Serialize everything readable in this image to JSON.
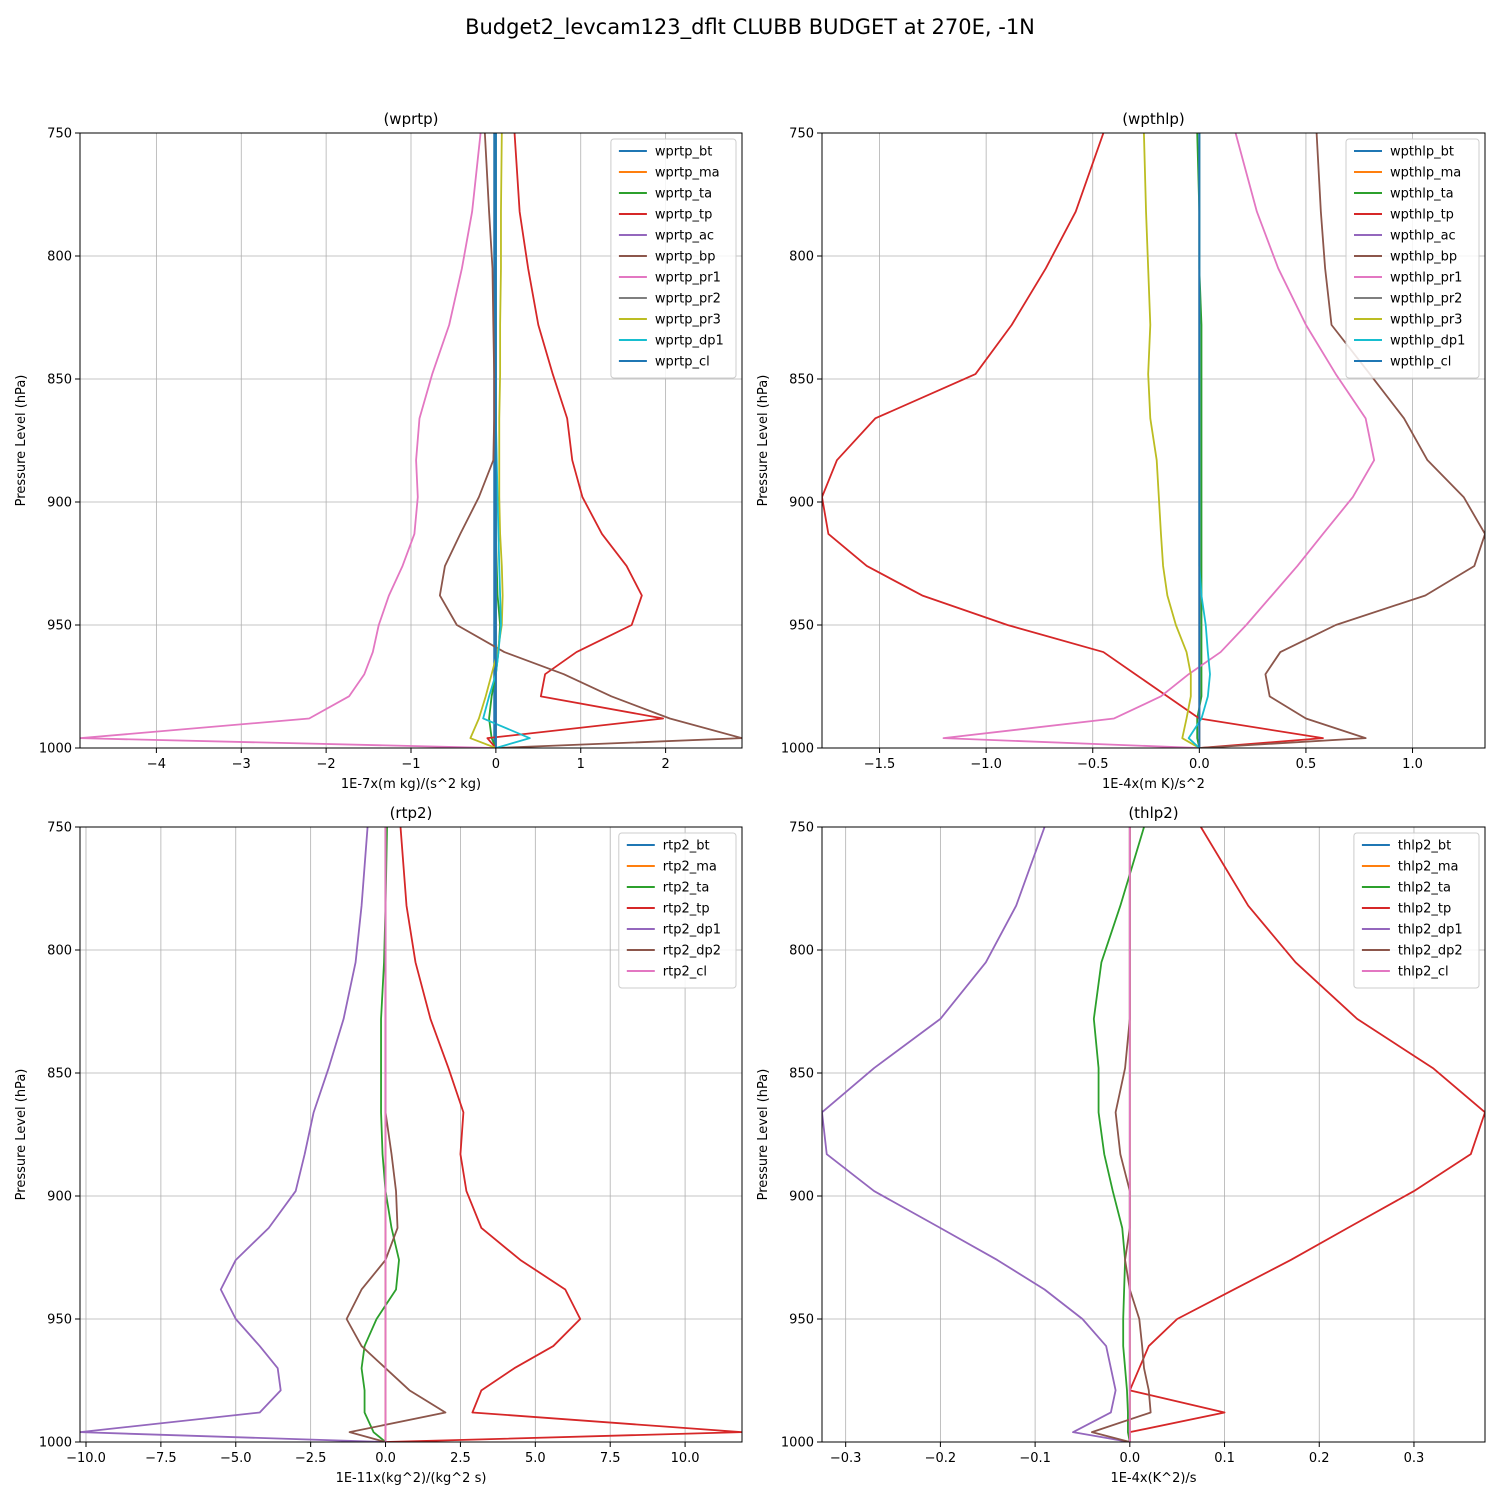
{
  "figure_title": "Budget2_levcam123_dflt CLUBB BUDGET at 270E, -1N",
  "chart_data": [
    {
      "type": "line",
      "title": "(wprtp)",
      "xlabel": "1E-7x(m kg)/(s^2 kg)",
      "ylabel": "Pressure Level (hPa)",
      "xlim": [
        -4.9,
        2.9
      ],
      "ylim": [
        1000,
        750
      ],
      "xticks": [
        -4,
        -3,
        -2,
        -1,
        0,
        1,
        2
      ],
      "yticks": [
        750,
        800,
        850,
        900,
        950,
        1000
      ],
      "grid": true,
      "legend": "top-right",
      "y": [
        750,
        782,
        805,
        828,
        848,
        866,
        883,
        898,
        913,
        926,
        938,
        950,
        961,
        970,
        979,
        988,
        996,
        1000
      ],
      "series": [
        {
          "name": "wprtp_bt",
          "color": "#1f77b4",
          "values": [
            -0.02,
            -0.02,
            -0.02,
            -0.02,
            -0.02,
            -0.02,
            -0.02,
            -0.02,
            -0.02,
            -0.02,
            -0.02,
            -0.02,
            -0.02,
            -0.02,
            -0.02,
            -0.02,
            -0.02,
            -0.02
          ]
        },
        {
          "name": "wprtp_ma",
          "color": "#ff7f0e",
          "values": [
            0,
            0,
            0,
            0,
            0,
            0,
            0,
            0,
            0,
            0,
            0,
            0,
            0,
            0,
            0,
            0,
            0,
            0
          ]
        },
        {
          "name": "wprtp_ta",
          "color": "#2ca02c",
          "values": [
            0,
            0,
            0,
            0,
            0,
            0,
            0,
            0,
            0,
            0.01,
            0.02,
            0.05,
            0.03,
            0,
            -0.05,
            -0.08,
            -0.05,
            0
          ]
        },
        {
          "name": "wprtp_tp",
          "color": "#d62728",
          "values": [
            0.22,
            0.28,
            0.38,
            0.5,
            0.67,
            0.84,
            0.9,
            1.02,
            1.25,
            1.54,
            1.72,
            1.6,
            0.95,
            0.58,
            0.53,
            1.97,
            -0.1,
            0
          ]
        },
        {
          "name": "wprtp_ac",
          "color": "#9467bd",
          "values": [
            0,
            0,
            0,
            0,
            0,
            0,
            0,
            0,
            0,
            0,
            0,
            0,
            0,
            0,
            0,
            0,
            0,
            0
          ]
        },
        {
          "name": "wprtp_bp",
          "color": "#8c564b",
          "values": [
            -0.13,
            -0.08,
            -0.04,
            -0.03,
            -0.02,
            -0.02,
            -0.03,
            -0.2,
            -0.42,
            -0.6,
            -0.66,
            -0.46,
            0.1,
            0.8,
            1.36,
            2.05,
            2.9,
            0
          ]
        },
        {
          "name": "wprtp_pr1",
          "color": "#e377c2",
          "values": [
            -0.18,
            -0.28,
            -0.4,
            -0.55,
            -0.75,
            -0.9,
            -0.94,
            -0.92,
            -0.96,
            -1.1,
            -1.26,
            -1.38,
            -1.45,
            -1.55,
            -1.73,
            -2.2,
            -4.9,
            0
          ]
        },
        {
          "name": "wprtp_pr2",
          "color": "#7f7f7f",
          "values": [
            0,
            0,
            0,
            0,
            0,
            0,
            0,
            0,
            0,
            0,
            0,
            0,
            0,
            0,
            0,
            0,
            0,
            0
          ]
        },
        {
          "name": "wprtp_pr3",
          "color": "#bcbd22",
          "values": [
            0.07,
            0.06,
            0.06,
            0.05,
            0.05,
            0.04,
            0.04,
            0.04,
            0.05,
            0.07,
            0.08,
            0.07,
            0.02,
            -0.05,
            -0.12,
            -0.2,
            -0.3,
            0
          ]
        },
        {
          "name": "wprtp_dp1",
          "color": "#17becf",
          "values": [
            0,
            0,
            0,
            0,
            0,
            0,
            0.01,
            0.02,
            0.03,
            0.04,
            0.05,
            0.06,
            0.03,
            0,
            -0.08,
            -0.15,
            0.4,
            0
          ]
        },
        {
          "name": "wprtp_cl",
          "color": "#1f77b4",
          "values": [
            0,
            0,
            0,
            0,
            0,
            0,
            0,
            0,
            0,
            0,
            0,
            0,
            0,
            0,
            0,
            0,
            0,
            0
          ]
        }
      ]
    },
    {
      "type": "line",
      "title": "(wpthlp)",
      "xlabel": "1E-4x(m K)/s^2",
      "ylabel": "Pressure Level (hPa)",
      "xlim": [
        -1.77,
        1.34
      ],
      "ylim": [
        1000,
        750
      ],
      "xticks": [
        -1.5,
        -1.0,
        -0.5,
        0.0,
        0.5,
        1.0
      ],
      "yticks": [
        750,
        800,
        850,
        900,
        950,
        1000
      ],
      "grid": true,
      "legend": "top-right",
      "y": [
        750,
        782,
        805,
        828,
        848,
        866,
        883,
        898,
        913,
        926,
        938,
        950,
        961,
        970,
        979,
        988,
        996,
        1000
      ],
      "series": [
        {
          "name": "wpthlp_bt",
          "color": "#1f77b4",
          "values": [
            0,
            0,
            0,
            0,
            0,
            0,
            0,
            0,
            0,
            0,
            0,
            0,
            0,
            0,
            0,
            0,
            0,
            0
          ]
        },
        {
          "name": "wpthlp_ma",
          "color": "#ff7f0e",
          "values": [
            0,
            0,
            0,
            0,
            0,
            0,
            0,
            0,
            0,
            0,
            0,
            0,
            0,
            0,
            0,
            0,
            0,
            0
          ]
        },
        {
          "name": "wpthlp_ta",
          "color": "#2ca02c",
          "values": [
            -0.01,
            0,
            0,
            0.01,
            0.01,
            0.01,
            0.01,
            0.01,
            0.01,
            0.01,
            0.01,
            0.01,
            0.01,
            0.01,
            0.01,
            -0.01,
            -0.01,
            0
          ]
        },
        {
          "name": "wpthlp_tp",
          "color": "#d62728",
          "values": [
            -0.45,
            -0.58,
            -0.72,
            -0.88,
            -1.05,
            -1.52,
            -1.7,
            -1.77,
            -1.74,
            -1.56,
            -1.3,
            -0.9,
            -0.45,
            -0.3,
            -0.15,
            0,
            0.58,
            0
          ]
        },
        {
          "name": "wpthlp_ac",
          "color": "#9467bd",
          "values": [
            0,
            0,
            0,
            0,
            0,
            0,
            0,
            0,
            0,
            0,
            0,
            0,
            0,
            0,
            0,
            0,
            0,
            0
          ]
        },
        {
          "name": "wpthlp_bp",
          "color": "#8c564b",
          "values": [
            0.55,
            0.57,
            0.59,
            0.62,
            0.8,
            0.96,
            1.07,
            1.24,
            1.34,
            1.29,
            1.06,
            0.64,
            0.38,
            0.31,
            0.33,
            0.5,
            0.78,
            0
          ]
        },
        {
          "name": "wpthlp_pr1",
          "color": "#e377c2",
          "values": [
            0.17,
            0.27,
            0.37,
            0.5,
            0.64,
            0.78,
            0.82,
            0.72,
            0.58,
            0.46,
            0.34,
            0.22,
            0.1,
            -0.05,
            -0.18,
            -0.4,
            -1.2,
            0
          ]
        },
        {
          "name": "wpthlp_pr2",
          "color": "#7f7f7f",
          "values": [
            0,
            0,
            0,
            0,
            0,
            0,
            0,
            0,
            0,
            0,
            0,
            0,
            0,
            0,
            0,
            0,
            0,
            0
          ]
        },
        {
          "name": "wpthlp_pr3",
          "color": "#bcbd22",
          "values": [
            -0.26,
            -0.25,
            -0.24,
            -0.23,
            -0.24,
            -0.23,
            -0.2,
            -0.19,
            -0.18,
            -0.17,
            -0.15,
            -0.11,
            -0.06,
            -0.04,
            -0.04,
            -0.06,
            -0.08,
            0
          ]
        },
        {
          "name": "wpthlp_dp1",
          "color": "#17becf",
          "values": [
            0,
            0,
            0,
            0,
            0,
            0,
            0,
            0,
            0,
            0,
            0.01,
            0.03,
            0.04,
            0.05,
            0.04,
            0.01,
            -0.05,
            0
          ]
        },
        {
          "name": "wpthlp_cl",
          "color": "#1f77b4",
          "values": [
            0,
            0,
            0,
            0,
            0,
            0,
            0,
            0,
            0,
            0,
            0,
            0,
            0,
            0,
            0,
            0,
            0,
            0
          ]
        }
      ]
    },
    {
      "type": "line",
      "title": "(rtp2)",
      "xlabel": "1E-11x(kg^2)/(kg^2 s)",
      "ylabel": "Pressure Level (hPa)",
      "xlim": [
        -10.2,
        11.9
      ],
      "ylim": [
        1000,
        750
      ],
      "xticks": [
        -10.0,
        -7.5,
        -5.0,
        -2.5,
        0.0,
        2.5,
        5.0,
        7.5,
        10.0
      ],
      "yticks": [
        750,
        800,
        850,
        900,
        950,
        1000
      ],
      "grid": true,
      "legend": "top-right",
      "y": [
        750,
        782,
        805,
        828,
        848,
        866,
        883,
        898,
        913,
        926,
        938,
        950,
        961,
        970,
        979,
        988,
        996,
        1000
      ],
      "series": [
        {
          "name": "rtp2_bt",
          "color": "#1f77b4",
          "values": [
            0,
            0,
            0,
            0,
            0,
            0,
            0,
            0,
            0,
            0,
            0,
            0,
            0,
            0,
            0,
            0,
            0,
            0
          ]
        },
        {
          "name": "rtp2_ma",
          "color": "#ff7f0e",
          "values": [
            0,
            0,
            0,
            0,
            0,
            0,
            0,
            0,
            0,
            0,
            0,
            0,
            0,
            0,
            0,
            0,
            0,
            0
          ]
        },
        {
          "name": "rtp2_ta",
          "color": "#2ca02c",
          "values": [
            0.05,
            0,
            -0.05,
            -0.15,
            -0.15,
            -0.15,
            -0.1,
            0,
            0.2,
            0.45,
            0.35,
            -0.3,
            -0.7,
            -0.8,
            -0.7,
            -0.7,
            -0.4,
            0
          ]
        },
        {
          "name": "rtp2_tp",
          "color": "#d62728",
          "values": [
            0.5,
            0.7,
            1.0,
            1.5,
            2.1,
            2.6,
            2.5,
            2.7,
            3.2,
            4.5,
            6.0,
            6.5,
            5.6,
            4.3,
            3.2,
            2.9,
            11.9,
            0
          ]
        },
        {
          "name": "rtp2_dp1",
          "color": "#9467bd",
          "values": [
            -0.6,
            -0.8,
            -1.0,
            -1.4,
            -1.9,
            -2.4,
            -2.7,
            -3.0,
            -3.9,
            -5.0,
            -5.5,
            -5.0,
            -4.2,
            -3.6,
            -3.5,
            -4.2,
            -10.2,
            0
          ]
        },
        {
          "name": "rtp2_dp2",
          "color": "#8c564b",
          "values": [
            0,
            0,
            0,
            0,
            0,
            0,
            0.2,
            0.35,
            0.4,
            0,
            -0.8,
            -1.3,
            -0.8,
            0,
            0.8,
            2.0,
            -1.2,
            0
          ]
        },
        {
          "name": "rtp2_cl",
          "color": "#e377c2",
          "values": [
            0,
            0,
            0,
            0,
            0,
            0,
            0,
            0,
            0,
            0,
            0,
            0,
            0,
            0,
            0,
            0,
            0,
            0
          ]
        }
      ]
    },
    {
      "type": "line",
      "title": "(thlp2)",
      "xlabel": "1E-4x(K^2)/s",
      "ylabel": "Pressure Level (hPa)",
      "xlim": [
        -0.325,
        0.375
      ],
      "ylim": [
        1000,
        750
      ],
      "xticks": [
        -0.3,
        -0.2,
        -0.1,
        0.0,
        0.1,
        0.2,
        0.3
      ],
      "yticks": [
        750,
        800,
        850,
        900,
        950,
        1000
      ],
      "grid": true,
      "legend": "top-right",
      "y": [
        750,
        782,
        805,
        828,
        848,
        866,
        883,
        898,
        913,
        926,
        938,
        950,
        961,
        970,
        979,
        988,
        996,
        1000
      ],
      "series": [
        {
          "name": "thlp2_bt",
          "color": "#1f77b4",
          "values": [
            0,
            0,
            0,
            0,
            0,
            0,
            0,
            0,
            0,
            0,
            0,
            0,
            0,
            0,
            0,
            0,
            0,
            0
          ]
        },
        {
          "name": "thlp2_ma",
          "color": "#ff7f0e",
          "values": [
            0,
            0,
            0,
            0,
            0,
            0,
            0,
            0,
            0,
            0,
            0,
            0,
            0,
            0,
            0,
            0,
            0,
            0
          ]
        },
        {
          "name": "thlp2_ta",
          "color": "#2ca02c",
          "values": [
            0.015,
            -0.01,
            -0.03,
            -0.038,
            -0.033,
            -0.033,
            -0.027,
            -0.018,
            -0.008,
            -0.005,
            -0.006,
            -0.007,
            -0.007,
            -0.005,
            -0.003,
            -0.002,
            -0.002,
            0
          ]
        },
        {
          "name": "thlp2_tp",
          "color": "#d62728",
          "values": [
            0.075,
            0.125,
            0.175,
            0.24,
            0.32,
            0.375,
            0.36,
            0.3,
            0.23,
            0.17,
            0.11,
            0.05,
            0.02,
            0.01,
            0,
            0.1,
            0,
            0
          ]
        },
        {
          "name": "thlp2_dp1",
          "color": "#9467bd",
          "values": [
            -0.09,
            -0.12,
            -0.152,
            -0.2,
            -0.27,
            -0.325,
            -0.32,
            -0.27,
            -0.2,
            -0.14,
            -0.09,
            -0.05,
            -0.025,
            -0.02,
            -0.015,
            -0.02,
            -0.06,
            0
          ]
        },
        {
          "name": "thlp2_dp2",
          "color": "#8c564b",
          "values": [
            0,
            0,
            0,
            0,
            -0.005,
            -0.015,
            -0.01,
            0,
            0,
            -0.005,
            0,
            0.01,
            0.013,
            0.015,
            0.02,
            0.022,
            -0.04,
            0
          ]
        },
        {
          "name": "thlp2_cl",
          "color": "#e377c2",
          "values": [
            0,
            0,
            0,
            0,
            0,
            0,
            0,
            0,
            0,
            0,
            0,
            0,
            0,
            0,
            0,
            0,
            0,
            0
          ]
        }
      ]
    }
  ]
}
